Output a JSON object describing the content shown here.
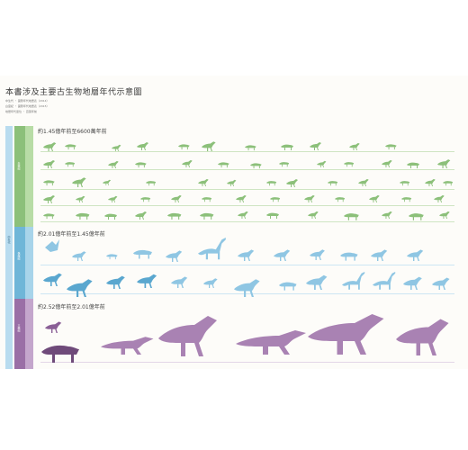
{
  "header": {
    "title": "本書涉及主要古生物地層年代示意圖",
    "notes": [
      "中生代 ・ 國際年代地層表（2014）",
      "白堊紀 ・ 國際年代地層表（2015）",
      "地層年代單位 ・ 百萬年前"
    ]
  },
  "eras": [
    {
      "label": "中生代",
      "color": "#9fcde3"
    }
  ],
  "periods": [
    {
      "label": "白堊紀",
      "color": "#8cc07a",
      "title": "約1.45億年前至6600萬年前"
    },
    {
      "label": "侏羅紀",
      "color": "#6fb6d8",
      "title": "約2.01億年前至1.45億年前"
    },
    {
      "label": "三疊紀",
      "color": "#9a6fa6",
      "title": "約2.52億年前至2.01億年前"
    }
  ],
  "colors": {
    "cretaceous": "#8cc07a",
    "jurassic": "#8fc6e3",
    "triassic": "#a982b3",
    "triassic_dark": "#6f4a7a"
  }
}
